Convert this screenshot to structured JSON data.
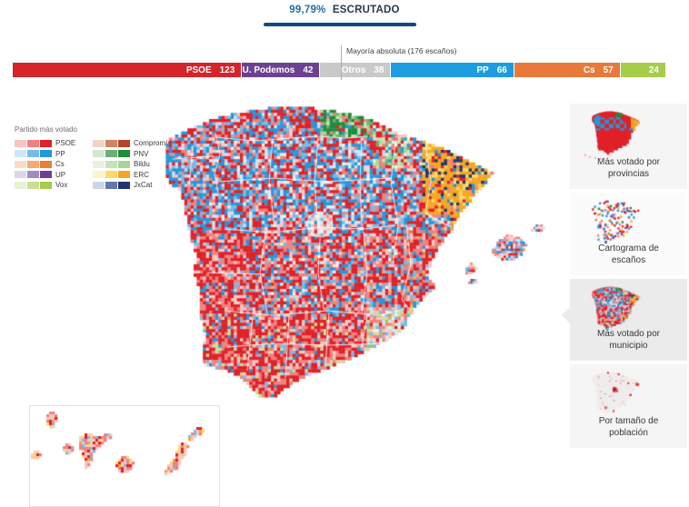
{
  "header": {
    "percent": "99,79%",
    "label": "ESCRUTADO"
  },
  "seatbar": {
    "total_seats": 350,
    "majority_label": "Mayoría absoluta (176 escaños)",
    "segments": [
      {
        "id": "psoe",
        "name": "PSOE",
        "seats": "123",
        "color": "#d6242b",
        "show_name": true
      },
      {
        "id": "podemos",
        "name": "U. Podemos",
        "seats": "42",
        "color": "#6d4191",
        "show_name": true
      },
      {
        "id": "otros",
        "name": "Otros",
        "seats": "38",
        "color": "#c9c9c9",
        "show_name": true
      },
      {
        "id": "pp",
        "name": "PP",
        "seats": "66",
        "color": "#1e9ce0",
        "show_name": true
      },
      {
        "id": "cs",
        "name": "Cs",
        "seats": "57",
        "color": "#e8793a",
        "show_name": true
      },
      {
        "id": "vox",
        "name": "Vox",
        "seats": "24",
        "color": "#a5cd4a",
        "show_name": false
      }
    ]
  },
  "legend": {
    "title": "Partido más votado",
    "columns": [
      [
        {
          "name": "PSOE",
          "shades": [
            "#f7c6c3",
            "#ef827e",
            "#e02128"
          ]
        },
        {
          "name": "PP",
          "shades": [
            "#cfe7f6",
            "#77bce7",
            "#2597dc"
          ]
        },
        {
          "name": "Cs",
          "shades": [
            "#fbdcc4",
            "#f4aa72",
            "#ec7e35"
          ]
        },
        {
          "name": "UP",
          "shades": [
            "#dcd6e8",
            "#a18cc0",
            "#6d4191"
          ]
        },
        {
          "name": "Vox",
          "shades": [
            "#e8f1d4",
            "#c9df95",
            "#a5cd4a"
          ]
        }
      ],
      [
        {
          "name": "Compromís",
          "shades": [
            "#f0d5c7",
            "#d28266",
            "#b5452a"
          ]
        },
        {
          "name": "PNV",
          "shades": [
            "#d3e6d1",
            "#6fae72",
            "#1e8d3d"
          ]
        },
        {
          "name": "Bildu",
          "shades": [
            "#e7f3e0",
            "#c7e3ba",
            "#a9d598"
          ]
        },
        {
          "name": "ERC",
          "shades": [
            "#fdf3cd",
            "#fbd96b",
            "#f5a723"
          ]
        },
        {
          "name": "JxCat",
          "shades": [
            "#ced6e6",
            "#6079aa",
            "#22356e"
          ]
        }
      ]
    ]
  },
  "sidebar": {
    "items": [
      {
        "id": "provincias",
        "mode": "provinces",
        "selected": false,
        "lines": [
          "Más votado por",
          "provincias"
        ]
      },
      {
        "id": "cartograma",
        "mode": "cartogram",
        "selected": false,
        "lines": [
          "Cartograma de",
          "escaños"
        ]
      },
      {
        "id": "municipio",
        "mode": "municipio",
        "selected": true,
        "lines": [
          "Más votado por",
          "municipio"
        ]
      },
      {
        "id": "poblacion",
        "mode": "poblacion",
        "selected": false,
        "lines": [
          "Por tamaño de",
          "población"
        ]
      }
    ]
  },
  "palette": {
    "psoe1": "#f7c6c3",
    "psoe2": "#ef827e",
    "psoe3": "#e02128",
    "pp1": "#cfe7f6",
    "pp2": "#77bce7",
    "pp3": "#2597dc",
    "cs1": "#fbdcc4",
    "cs2": "#f4aa72",
    "cs3": "#ec7e35",
    "up1": "#dcd6e8",
    "up2": "#a18cc0",
    "up3": "#6d4191",
    "vox1": "#e8f1d4",
    "vox2": "#c9df95",
    "vox3": "#a5cd4a",
    "com1": "#f0d5c7",
    "com2": "#d28266",
    "com3": "#b5452a",
    "pnv1": "#d3e6d1",
    "pnv2": "#6fae72",
    "pnv3": "#1e8d3d",
    "bil1": "#e7f3e0",
    "bil2": "#c7e3ba",
    "bil3": "#a9d598",
    "erc1": "#fdf3cd",
    "erc2": "#fbd96b",
    "erc3": "#f5a723",
    "jxc1": "#ced6e6",
    "jxc2": "#6079aa",
    "jxc3": "#22356e",
    "pale": "#f1eeec"
  },
  "map": {
    "region_weights": {
      "galicia": {
        "pp3": 28,
        "pp2": 14,
        "pp1": 8,
        "psoe3": 24,
        "psoe2": 14,
        "psoe1": 12
      },
      "northcoast": {
        "psoe3": 34,
        "psoe2": 16,
        "psoe1": 8,
        "pp3": 22,
        "pp2": 12,
        "pp1": 8
      },
      "basque": {
        "pnv3": 38,
        "pnv2": 16,
        "bil3": 10,
        "bil2": 12,
        "psoe3": 10,
        "psoe2": 8,
        "pp3": 6
      },
      "navarra": {
        "bil2": 16,
        "bil3": 10,
        "bil1": 10,
        "pnv2": 8,
        "psoe3": 22,
        "psoe2": 14,
        "pp3": 10,
        "psoe1": 10
      },
      "catalonia_n": {
        "erc3": 50,
        "erc2": 12,
        "jxc3": 20,
        "psoe3": 8,
        "psoe2": 6,
        "pp3": 4
      },
      "catalonia_s": {
        "erc3": 54,
        "erc2": 14,
        "jxc3": 8,
        "psoe3": 12,
        "psoe2": 8,
        "pp3": 4
      },
      "cyl": {
        "pp3": 27,
        "pp2": 13,
        "pp1": 9,
        "psoe3": 26,
        "psoe2": 13,
        "psoe1": 8,
        "pale": 4
      },
      "aragon": {
        "psoe3": 30,
        "psoe2": 15,
        "psoe1": 11,
        "pp3": 22,
        "pp2": 12,
        "pp1": 10
      },
      "madrid": {
        "pale": 22,
        "psoe1": 20,
        "pp1": 20,
        "psoe2": 12,
        "pp2": 12,
        "psoe3": 7,
        "pp3": 7
      },
      "valencia": {
        "psoe3": 36,
        "psoe2": 20,
        "psoe1": 12,
        "pp3": 12,
        "pp2": 8,
        "com2": 6,
        "cs2": 6
      },
      "murcia": {
        "psoe2": 16,
        "psoe1": 16,
        "pp1": 12,
        "pp2": 12,
        "vox2": 12,
        "vox3": 8,
        "psoe3": 10,
        "cs2": 8,
        "pale": 6
      },
      "andalusia": {
        "psoe3": 46,
        "psoe2": 22,
        "psoe1": 14,
        "pp3": 6,
        "pp2": 6,
        "vox2": 6
      },
      "extremadura": {
        "psoe3": 48,
        "psoe2": 22,
        "psoe1": 16,
        "pp3": 8,
        "pp2": 6
      },
      "clm": {
        "psoe3": 36,
        "psoe2": 18,
        "psoe1": 12,
        "pp3": 16,
        "pp2": 10,
        "cs2": 4,
        "pale": 4
      },
      "balearics": {
        "psoe2": 22,
        "psoe1": 20,
        "psoe3": 14,
        "pp3": 16,
        "pp2": 16,
        "pp1": 12
      },
      "canaries": {
        "psoe1": 32,
        "psoe2": 24,
        "psoe3": 14,
        "erc2": 14,
        "erc3": 6,
        "pp2": 10
      }
    },
    "cartogram_weights": {
      "psoe3": 40,
      "pp3": 24,
      "erc3": 8,
      "cs3": 8,
      "up3": 6,
      "pnv3": 4,
      "psoe2": 10
    },
    "population_weights": {
      "psoe3": 40,
      "psoe2": 35,
      "pp3": 10,
      "erc3": 8,
      "jxc3": 7
    },
    "province_colors": {
      "galicia": "pp3",
      "northcoast": "psoe3",
      "basque": "pnv3",
      "navarra": "psoe3",
      "catalonia_n": "erc3",
      "catalonia_s": "erc3",
      "cyl": "mix",
      "aragon": "psoe3",
      "madrid": "psoe3",
      "valencia": "psoe3",
      "murcia": "psoe3",
      "extremadura": "psoe3",
      "clm": "psoe3",
      "andalusia": "psoe3"
    }
  }
}
